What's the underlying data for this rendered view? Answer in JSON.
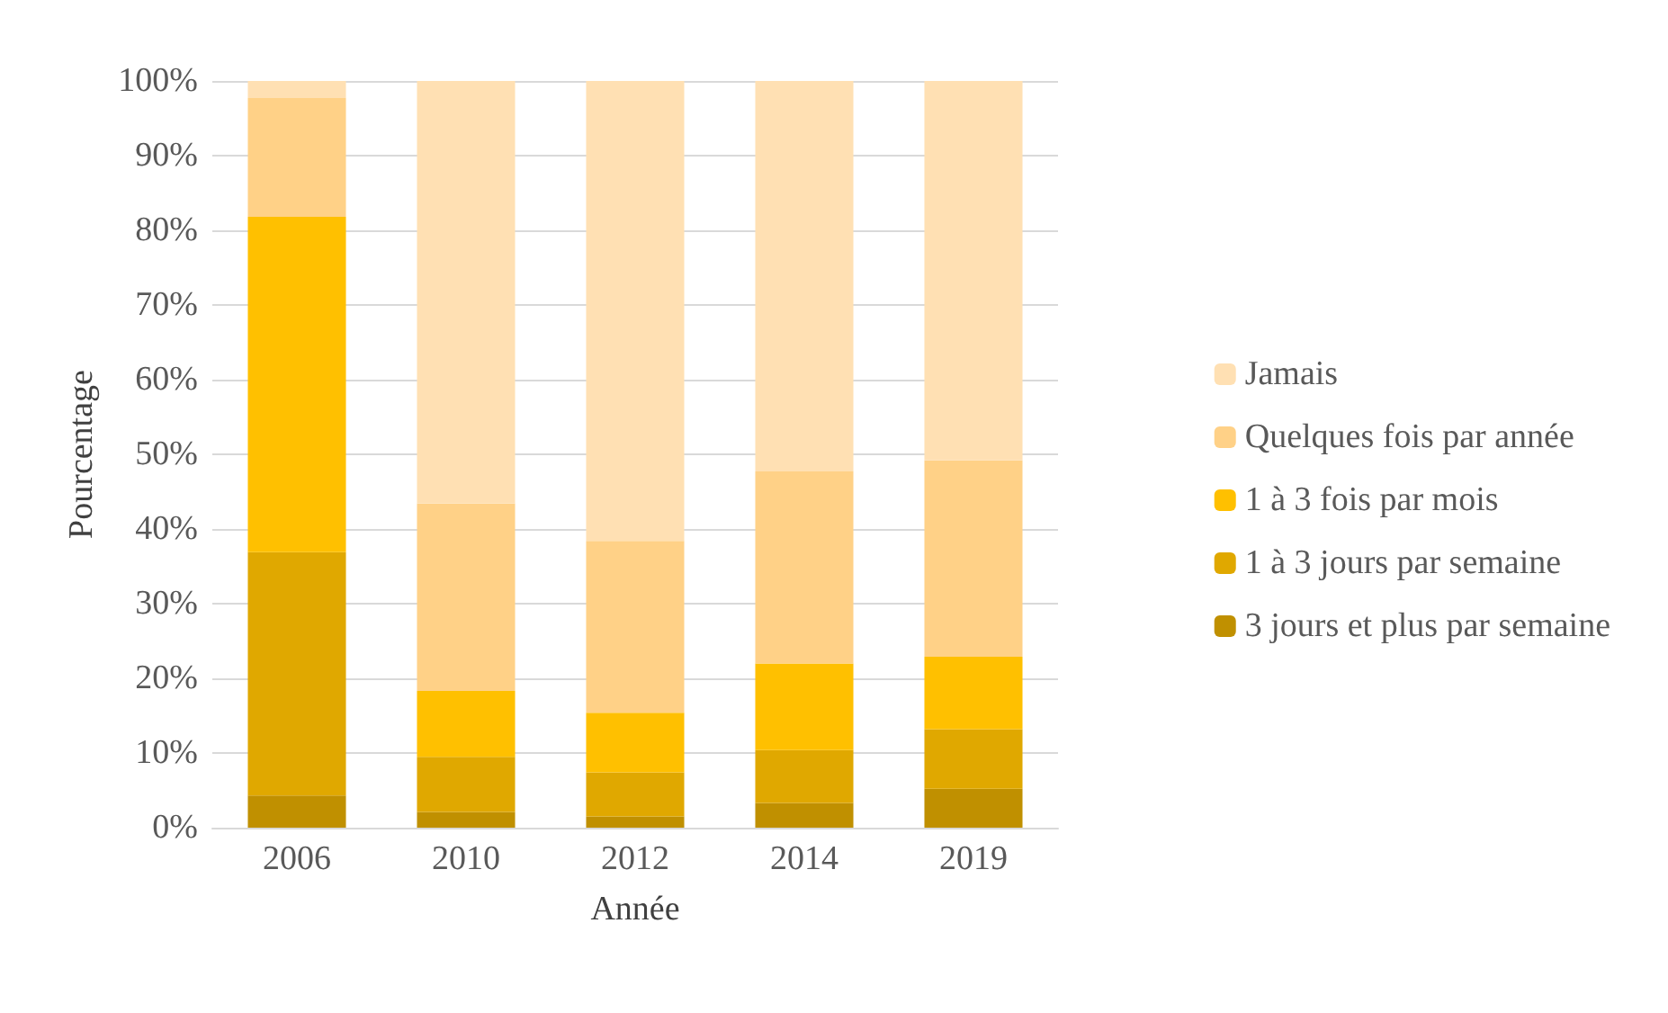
{
  "chart_data": {
    "type": "bar",
    "stacked": true,
    "xlabel": "Année",
    "ylabel": "Pourcentage",
    "categories": [
      "2006",
      "2010",
      "2012",
      "2014",
      "2019"
    ],
    "series": [
      {
        "name": "3 jours et plus par semaine",
        "color": "#c09000",
        "values": [
          4.3,
          2.1,
          1.5,
          3.3,
          5.2
        ]
      },
      {
        "name": "1 à 3 jours par semaine",
        "color": "#e0a800",
        "values": [
          32.6,
          7.4,
          5.9,
          7.1,
          8.0
        ]
      },
      {
        "name": "1 à 3 fois par mois",
        "color": "#ffc000",
        "values": [
          44.9,
          8.8,
          8.0,
          11.6,
          9.7
        ]
      },
      {
        "name": "Quelques fois par année",
        "color": "#ffd187",
        "values": [
          15.9,
          25.1,
          23.0,
          25.7,
          26.3
        ]
      },
      {
        "name": "Jamais",
        "color": "#ffe0b3",
        "values": [
          2.3,
          56.6,
          61.6,
          52.3,
          50.8
        ]
      }
    ],
    "ylim": [
      0,
      100
    ],
    "yticks": [
      {
        "value": 0,
        "label": "0%"
      },
      {
        "value": 10,
        "label": "10%"
      },
      {
        "value": 20,
        "label": "20%"
      },
      {
        "value": 30,
        "label": "30%"
      },
      {
        "value": 40,
        "label": "40%"
      },
      {
        "value": 50,
        "label": "50%"
      },
      {
        "value": 60,
        "label": "60%"
      },
      {
        "value": 70,
        "label": "70%"
      },
      {
        "value": 80,
        "label": "80%"
      },
      {
        "value": 90,
        "label": "90%"
      },
      {
        "value": 100,
        "label": "100%"
      }
    ],
    "grid": "y",
    "legend": "right"
  }
}
